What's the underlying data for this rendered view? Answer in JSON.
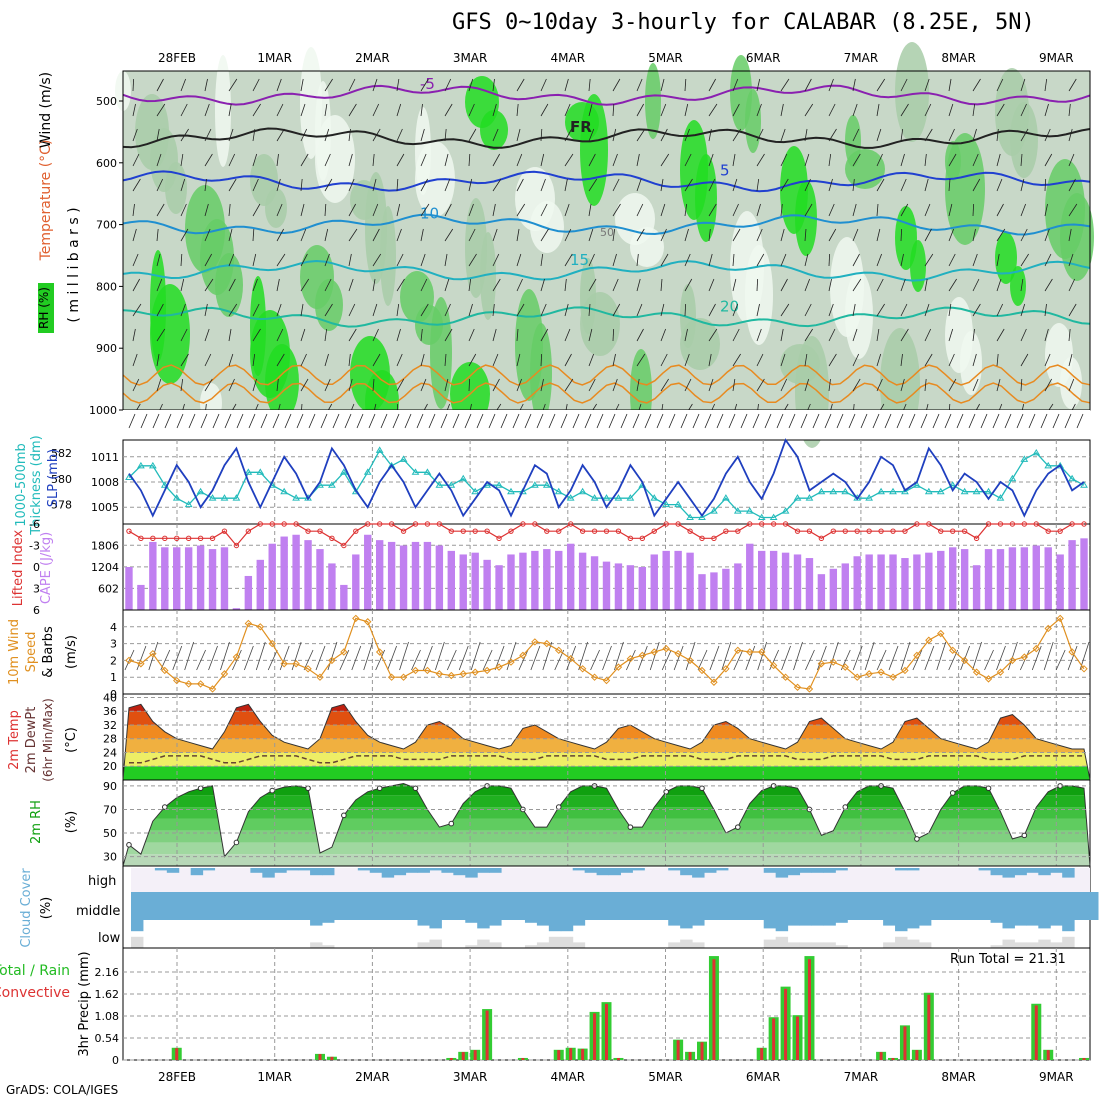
{
  "title": "GFS 0~10day 3-hourly for CALABAR (8.25E, 5N)",
  "credit": "GrADS: COLA/IGES",
  "dates": [
    "28FEB",
    "1MAR",
    "2MAR",
    "3MAR",
    "4MAR",
    "5MAR",
    "6MAR",
    "7MAR",
    "8MAR",
    "9MAR"
  ],
  "panel_labels": {
    "upper_rh": "RH (%)",
    "upper_temp": "Temperature (°C)",
    "upper_wind": "Wind (m/s)",
    "upper_unit": "( m i l l i b a r s )",
    "thick_1": "1000-500mb",
    "thick_2": "Thickness (dm)",
    "slp": "SLP (mb)",
    "li": "Lifted Index",
    "cape": "CAPE (J/kg)",
    "wind10_1": "10m Wind",
    "wind10_2": "Speed",
    "wind10_3": "& Barbs",
    "wind10_unit": "(m/s)",
    "temp_1": "2m Temp",
    "temp_2": "2m DewPt",
    "temp_3": "(6hr Min/Max)",
    "temp_unit": "(°C)",
    "rh2m": "2m RH",
    "rh2m_unit": "(%)",
    "cloud": "Cloud Cover",
    "cloud_unit": "(%)",
    "cloud_levels": [
      "high",
      "middle",
      "low"
    ],
    "precip_1": "Total / Rain",
    "precip_2": "Convective",
    "precip_unit": "3hr Precip (mm)"
  },
  "run_total": "Run Total = 21.31",
  "colors": {
    "rh_green": "#00ee00",
    "slp_line": "#1f3fbf",
    "thickness_line": "#22bbbb",
    "lifted_index": "#dd3333",
    "cape_bar": "#c080f0",
    "wind10": "#e09020",
    "temp_fill_hot": "#e05010",
    "dewpoint": "#664433",
    "rh2m_fill": "#10b010",
    "cloud_fill": "#6aaed6",
    "cloud_clear": "#dddddd",
    "precip_total": "#33cc33",
    "precip_conv": "#dd3333"
  },
  "chart_data": [
    {
      "type": "heatmap",
      "name_shown": "",
      "y_axis": "pressure (millibars)",
      "y_ticks": [
        500,
        600,
        700,
        800,
        900,
        1000
      ],
      "temperature_contours": [
        {
          "label": "-5",
          "approx_level_mb": 490
        },
        {
          "label": "FR",
          "approx_level_mb": 560
        },
        {
          "label": "5",
          "approx_level_mb": 630
        },
        {
          "label": "10",
          "approx_level_mb": 700
        },
        {
          "label": "15",
          "approx_level_mb": 775
        },
        {
          "label": "20",
          "approx_level_mb": 850
        }
      ],
      "rh_labels": [
        "50"
      ]
    },
    {
      "type": "line",
      "x": "3-hourly, 81 steps from 28FEB to 9MAR",
      "slp": {
        "ticks": [
          1005,
          1008,
          1011
        ],
        "values": [
          1009,
          1007,
          1004,
          1007,
          1010,
          1008,
          1005,
          1007,
          1010,
          1012,
          1008,
          1005,
          1008,
          1011,
          1009,
          1006,
          1008,
          1012,
          1010,
          1007,
          1005,
          1008,
          1010,
          1008,
          1005,
          1007,
          1009,
          1007,
          1004,
          1006,
          1008,
          1007,
          1004,
          1007,
          1010,
          1009,
          1005,
          1007,
          1010,
          1008,
          1005,
          1007,
          1010,
          1008,
          1004,
          1006,
          1008,
          1006,
          1004,
          1006,
          1009,
          1011,
          1008,
          1006,
          1009,
          1013,
          1011,
          1007,
          1008,
          1009,
          1008,
          1006,
          1008,
          1011,
          1010,
          1007,
          1008,
          1012,
          1010,
          1007,
          1009,
          1008,
          1006,
          1008,
          1007,
          1004,
          1007,
          1009,
          1010,
          1007,
          1008
        ]
      },
      "thickness": {
        "ticks": [
          578,
          580,
          582
        ],
        "values": [
          580.1,
          581.0,
          581.0,
          579.5,
          578.5,
          578.0,
          579.0,
          578.5,
          578.5,
          578.5,
          580.5,
          580.5,
          579.5,
          579.0,
          578.5,
          578.5,
          579.5,
          579.5,
          580.5,
          579.0,
          580.5,
          582.2,
          581.0,
          581.5,
          580.5,
          580.5,
          579.5,
          579.5,
          580.0,
          579.0,
          579.5,
          579.5,
          579.0,
          579.0,
          579.5,
          579.5,
          579.0,
          578.5,
          579.0,
          578.5,
          578.5,
          578.5,
          578.5,
          579.5,
          578.5,
          578.0,
          578.0,
          577.0,
          577.0,
          577.5,
          578.5,
          577.5,
          577.5,
          577.0,
          577.0,
          577.5,
          578.5,
          578.5,
          579.0,
          579.0,
          579.0,
          578.5,
          578.5,
          579.0,
          579.0,
          579.0,
          579.5,
          579.0,
          579.0,
          579.5,
          579.0,
          579.0,
          579.0,
          578.5,
          580.0,
          581.5,
          582.0,
          581.0,
          581.0,
          580.0,
          579.5
        ]
      }
    },
    {
      "type": "bar",
      "cape": {
        "ticks": [
          602,
          1204,
          1806
        ],
        "values": [
          1200,
          700,
          1900,
          1750,
          1750,
          1750,
          1800,
          1700,
          1750,
          50,
          950,
          1400,
          1850,
          2050,
          2100,
          1950,
          1700,
          1300,
          700,
          1550,
          2100,
          1950,
          1900,
          1800,
          1900,
          1900,
          1800,
          1650,
          1550,
          1600,
          1400,
          1250,
          1550,
          1600,
          1650,
          1700,
          1650,
          1850,
          1600,
          1500,
          1350,
          1300,
          1250,
          1200,
          1550,
          1650,
          1650,
          1600,
          1000,
          1050,
          1150,
          1300,
          1850,
          1650,
          1650,
          1600,
          1550,
          1450,
          1000,
          1150,
          1300,
          1500,
          1550,
          1550,
          1550,
          1450,
          1550,
          1600,
          1650,
          1750,
          1700,
          1250,
          1700,
          1700,
          1750,
          1750,
          1800,
          1750,
          1550,
          1950,
          2000
        ]
      },
      "lifted_index": {
        "ticks": [
          -6,
          -3,
          0,
          3,
          6
        ],
        "values": [
          -5,
          -4,
          -4,
          -4,
          -4,
          -4,
          -4,
          -4,
          -5,
          -3,
          -5,
          -6,
          -6,
          -6,
          -6,
          -5,
          -5,
          -4,
          -3,
          -5,
          -6,
          -6,
          -6,
          -5,
          -6,
          -6,
          -6,
          -5,
          -5,
          -5,
          -5,
          -4,
          -5,
          -6,
          -6,
          -5,
          -5,
          -6,
          -5,
          -5,
          -5,
          -5,
          -4,
          -4,
          -5,
          -6,
          -6,
          -5,
          -4,
          -4,
          -5,
          -5,
          -6,
          -6,
          -6,
          -6,
          -5,
          -5,
          -4,
          -5,
          -5,
          -5,
          -5,
          -5,
          -5,
          -5,
          -6,
          -6,
          -5,
          -5,
          -5,
          -4,
          -6,
          -6,
          -6,
          -6,
          -6,
          -5,
          -5,
          -6,
          -6
        ]
      }
    },
    {
      "type": "line",
      "wind10_speed": {
        "ticks": [
          0,
          1,
          2,
          3,
          4
        ],
        "values": [
          2.0,
          1.8,
          2.4,
          1.4,
          0.8,
          0.6,
          0.6,
          0.3,
          1.2,
          2.2,
          4.2,
          4.0,
          3.0,
          1.8,
          1.8,
          1.5,
          1.0,
          2.0,
          2.5,
          4.5,
          4.3,
          2.5,
          1.0,
          1.0,
          1.4,
          1.4,
          1.2,
          1.1,
          1.2,
          1.3,
          1.4,
          1.6,
          1.9,
          2.3,
          3.1,
          3.0,
          2.6,
          2.1,
          1.5,
          1.0,
          0.8,
          1.6,
          2.1,
          2.3,
          2.5,
          2.7,
          2.4,
          2.0,
          1.4,
          0.7,
          1.5,
          2.6,
          2.5,
          2.5,
          1.7,
          1.0,
          0.4,
          0.3,
          1.8,
          1.9,
          1.6,
          1.0,
          1.2,
          1.3,
          1.0,
          1.4,
          2.3,
          3.2,
          3.6,
          2.6,
          2.0,
          1.3,
          0.9,
          1.3,
          2.0,
          2.2,
          2.7,
          3.9,
          4.5,
          2.5,
          1.5
        ]
      }
    },
    {
      "type": "area",
      "temp_ticks": [
        20,
        24,
        28,
        32,
        36,
        40
      ],
      "temp_values": [
        37,
        38,
        33,
        30,
        28,
        27,
        26,
        25,
        30,
        37,
        38,
        33,
        29,
        27,
        26,
        25,
        28,
        37,
        38,
        33,
        29,
        27,
        26,
        25,
        27,
        32,
        33,
        31,
        28,
        27,
        26,
        25,
        26,
        31,
        32,
        30,
        28,
        27,
        26,
        25,
        27,
        31,
        32,
        30,
        28,
        27,
        26,
        25,
        27,
        32,
        33,
        31,
        28,
        27,
        26,
        25,
        27,
        33,
        34,
        31,
        28,
        27,
        26,
        25,
        27,
        33,
        34,
        31,
        28,
        27,
        26,
        25,
        27,
        34,
        35,
        32,
        28,
        27,
        26,
        25,
        25
      ],
      "dewpoint_values": [
        21,
        21,
        22,
        23,
        23,
        23,
        23,
        22,
        21,
        21,
        22,
        23,
        23,
        23,
        23,
        22,
        21,
        21,
        22,
        23,
        23,
        23,
        23,
        22,
        22,
        22,
        22,
        23,
        23,
        23,
        23,
        23,
        22,
        22,
        22,
        23,
        23,
        23,
        23,
        23,
        22,
        22,
        22,
        23,
        23,
        23,
        23,
        23,
        22,
        22,
        22,
        23,
        23,
        23,
        23,
        23,
        22,
        22,
        22,
        23,
        23,
        23,
        23,
        23,
        22,
        22,
        22,
        23,
        23,
        23,
        23,
        23,
        22,
        22,
        22,
        23,
        23,
        23,
        23,
        23,
        23
      ]
    },
    {
      "type": "area",
      "rh_ticks": [
        30,
        50,
        70,
        90
      ],
      "rh_values": [
        40,
        32,
        60,
        72,
        80,
        85,
        88,
        90,
        30,
        42,
        68,
        80,
        86,
        89,
        90,
        88,
        33,
        38,
        65,
        78,
        85,
        88,
        90,
        92,
        88,
        70,
        55,
        58,
        75,
        85,
        90,
        90,
        88,
        70,
        55,
        55,
        72,
        85,
        90,
        90,
        88,
        70,
        55,
        55,
        72,
        85,
        90,
        90,
        88,
        70,
        50,
        55,
        75,
        86,
        90,
        90,
        88,
        70,
        48,
        52,
        72,
        85,
        90,
        90,
        88,
        68,
        45,
        50,
        70,
        84,
        90,
        90,
        88,
        68,
        45,
        48,
        72,
        85,
        90,
        90,
        88
      ]
    },
    {
      "type": "bar",
      "cloud_high": [
        0,
        0,
        10,
        20,
        0,
        30,
        10,
        0,
        0,
        0,
        20,
        40,
        20,
        10,
        10,
        30,
        30,
        0,
        0,
        10,
        20,
        40,
        30,
        20,
        20,
        10,
        20,
        30,
        40,
        20,
        20,
        0,
        0,
        0,
        0,
        0,
        0,
        10,
        20,
        30,
        30,
        20,
        10,
        0,
        0,
        10,
        30,
        40,
        20,
        10,
        0,
        0,
        0,
        20,
        40,
        30,
        20,
        20,
        20,
        10,
        0,
        0,
        0,
        0,
        10,
        10,
        0,
        0,
        0,
        0,
        0,
        10,
        30,
        40,
        30,
        20,
        30,
        20,
        40,
        0,
        0
      ],
      "cloud_middle": [
        100,
        100,
        100,
        100,
        100,
        100,
        100,
        100,
        100,
        100,
        100,
        100,
        100,
        100,
        100,
        100,
        100,
        100,
        100,
        100,
        100,
        100,
        100,
        100,
        100,
        100,
        100,
        100,
        100,
        100,
        100,
        100,
        100,
        100,
        100,
        100,
        100,
        100,
        100,
        100,
        100,
        100,
        100,
        100,
        100,
        100,
        100,
        100,
        100,
        100,
        100,
        100,
        100,
        100,
        100,
        100,
        100,
        100,
        100,
        100,
        100,
        100,
        100,
        100,
        100,
        100,
        100,
        100,
        100,
        100,
        100,
        100,
        100,
        100,
        100,
        100,
        100,
        100,
        100,
        100,
        100
      ],
      "cloud_low": [
        40,
        0,
        0,
        0,
        0,
        0,
        0,
        0,
        0,
        0,
        0,
        0,
        0,
        0,
        0,
        20,
        10,
        0,
        0,
        0,
        0,
        0,
        0,
        0,
        20,
        30,
        0,
        0,
        10,
        30,
        20,
        0,
        0,
        10,
        20,
        40,
        40,
        20,
        0,
        0,
        0,
        0,
        0,
        0,
        0,
        20,
        30,
        20,
        0,
        0,
        0,
        0,
        0,
        30,
        40,
        20,
        20,
        20,
        20,
        10,
        0,
        0,
        0,
        20,
        40,
        30,
        20,
        0,
        0,
        0,
        0,
        0,
        10,
        30,
        20,
        20,
        30,
        20,
        40,
        0,
        0
      ]
    },
    {
      "type": "bar",
      "precip_ticks": [
        0,
        0.54,
        1.08,
        1.62,
        2.16
      ],
      "precip_values": [
        0,
        0,
        0,
        0,
        0.3,
        0,
        0,
        0,
        0,
        0,
        0,
        0,
        0,
        0,
        0,
        0,
        0.15,
        0.08,
        0,
        0,
        0,
        0,
        0,
        0,
        0,
        0,
        0,
        0.05,
        0.2,
        0.25,
        1.25,
        0,
        0,
        0.05,
        0,
        0,
        0.25,
        0.3,
        0.28,
        1.18,
        1.42,
        0.05,
        0,
        0,
        0,
        0,
        0.5,
        0.2,
        0.45,
        2.55,
        0,
        0,
        0,
        0.3,
        1.05,
        1.8,
        1.1,
        2.55,
        0,
        0,
        0,
        0,
        0,
        0.2,
        0.05,
        0.85,
        0.25,
        1.65,
        0,
        0,
        0,
        0,
        0,
        0,
        0,
        0,
        1.38,
        0.25,
        0,
        0,
        0.05
      ]
    }
  ]
}
